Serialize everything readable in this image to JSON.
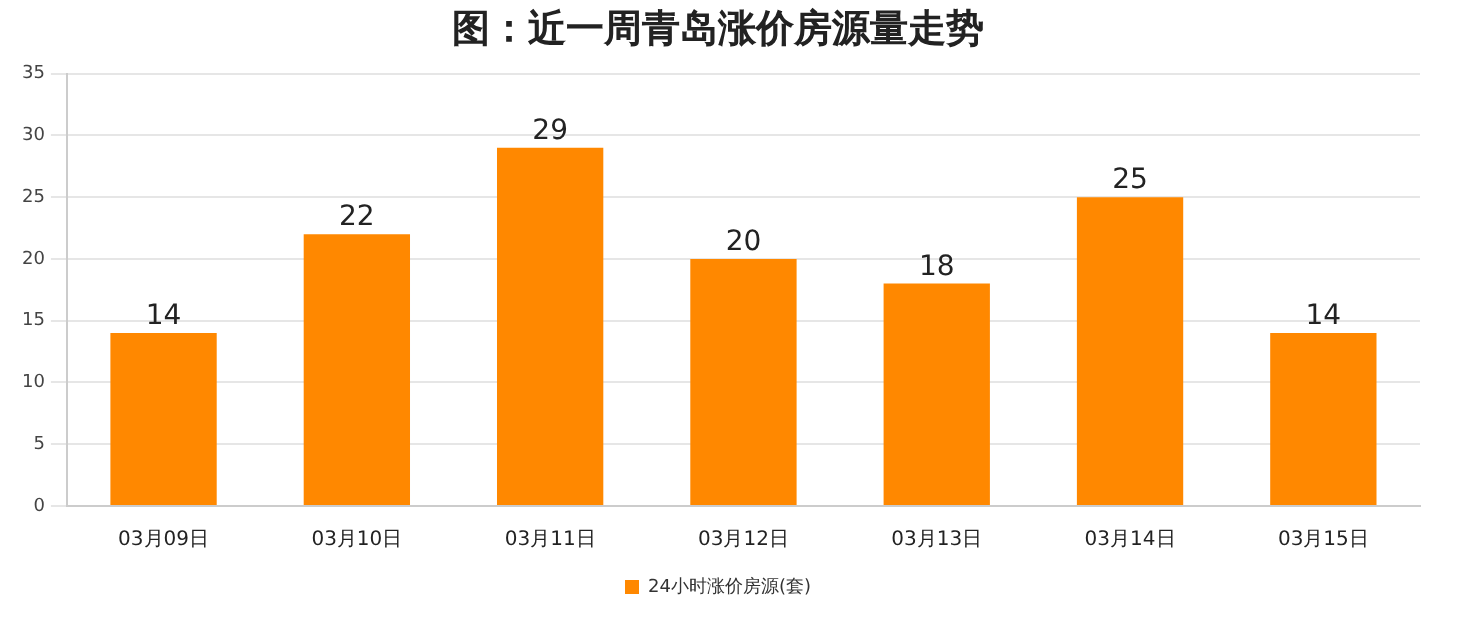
{
  "chart_data": {
    "type": "bar",
    "title": "图：近一周青岛涨价房源量走势",
    "categories": [
      "03月09日",
      "03月10日",
      "03月11日",
      "03月12日",
      "03月13日",
      "03月14日",
      "03月15日"
    ],
    "series": [
      {
        "name": "24小时涨价房源(套)",
        "color": "#ff8800",
        "values": [
          14,
          22,
          29,
          20,
          18,
          25,
          14
        ]
      }
    ],
    "ylim": [
      0,
      35
    ],
    "yticks": [
      0,
      5,
      10,
      15,
      20,
      25,
      30,
      35
    ],
    "grid": "y",
    "legend": "bottom",
    "data_labels": true
  }
}
